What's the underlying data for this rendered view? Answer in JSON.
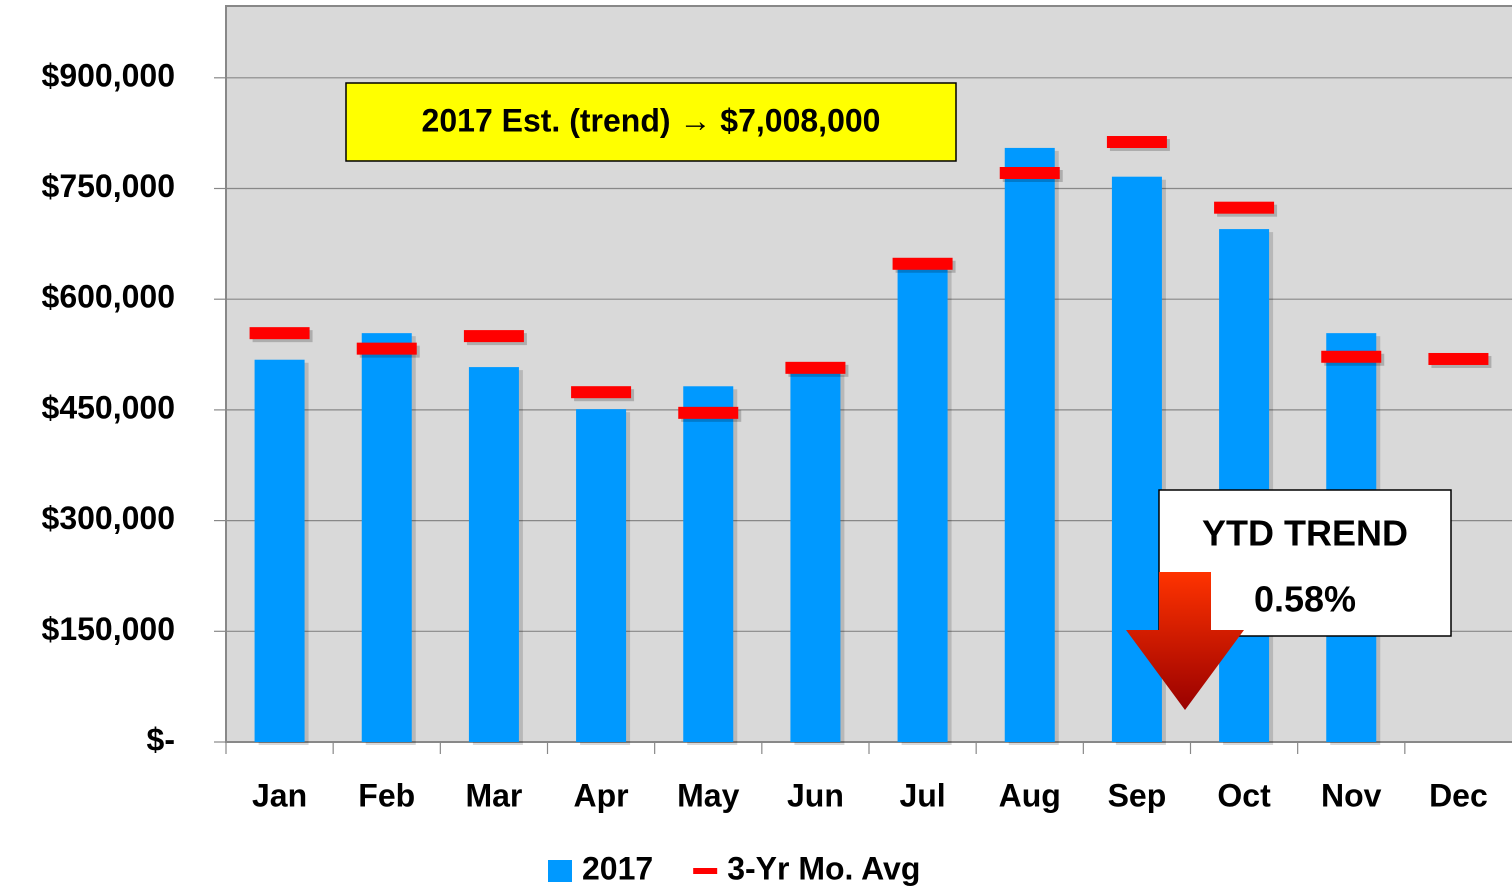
{
  "chart_data": {
    "type": "bar",
    "categories": [
      "Jan",
      "Feb",
      "Mar",
      "Apr",
      "May",
      "Jun",
      "Jul",
      "Aug",
      "Sep",
      "Oct",
      "Nov",
      "Dec"
    ],
    "series": [
      {
        "name": "2017",
        "color": "#0099ff",
        "values": [
          518000,
          554000,
          508000,
          451000,
          482000,
          501000,
          642000,
          805000,
          766000,
          695000,
          554000,
          null
        ]
      },
      {
        "name": "3-Yr Mo. Avg",
        "color": "#ff0000",
        "marker": "dash",
        "values": [
          554000,
          533000,
          550000,
          474000,
          446000,
          507000,
          648000,
          771000,
          813000,
          724000,
          522000,
          519000
        ]
      }
    ],
    "ylim": [
      0,
      1000000
    ],
    "yticks": [
      {
        "value": 0,
        "label": "$-"
      },
      {
        "value": 150000,
        "label": "$150,000"
      },
      {
        "value": 300000,
        "label": "$300,000"
      },
      {
        "value": 450000,
        "label": "$450,000"
      },
      {
        "value": 600000,
        "label": "$600,000"
      },
      {
        "value": 750000,
        "label": "$750,000"
      },
      {
        "value": 900000,
        "label": "$900,000"
      }
    ],
    "grid": true,
    "legend": "bottom",
    "annotations": [
      "2017 Est. (trend) → $7,008,000",
      "YTD TREND",
      "0.58%"
    ]
  }
}
